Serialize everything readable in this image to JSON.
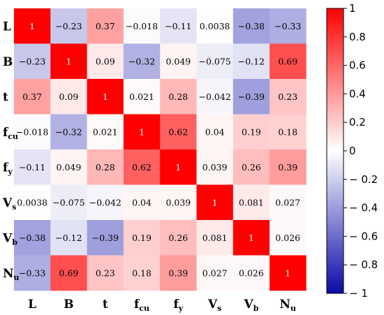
{
  "chart_data": {
    "type": "heatmap",
    "variables": [
      {
        "main": "L",
        "sub": ""
      },
      {
        "main": "B",
        "sub": ""
      },
      {
        "main": "t",
        "sub": ""
      },
      {
        "main": "f",
        "sub": "cu"
      },
      {
        "main": "f",
        "sub": "y"
      },
      {
        "main": "V",
        "sub": "s"
      },
      {
        "main": "V",
        "sub": "b"
      },
      {
        "main": "N",
        "sub": "u"
      }
    ],
    "matrix": [
      [
        "1",
        "-0.23",
        "0.37",
        "-0.018",
        "-0.11",
        "0.0038",
        "-0.38",
        "-0.33"
      ],
      [
        "-0.23",
        "1",
        "0.09",
        "-0.32",
        "0.049",
        "-0.075",
        "-0.12",
        "0.69"
      ],
      [
        "0.37",
        "0.09",
        "1",
        "0.021",
        "0.28",
        "-0.042",
        "-0.39",
        "0.23"
      ],
      [
        "-0.018",
        "-0.32",
        "0.021",
        "1",
        "0.62",
        "0.04",
        "0.19",
        "0.18"
      ],
      [
        "-0.11",
        "0.049",
        "0.28",
        "0.62",
        "1",
        "0.039",
        "0.26",
        "0.39"
      ],
      [
        "0.0038",
        "-0.075",
        "-0.042",
        "0.04",
        "0.039",
        "1",
        "0.081",
        "0.027"
      ],
      [
        "-0.38",
        "-0.12",
        "-0.39",
        "0.19",
        "0.26",
        "0.081",
        "1",
        "0.026"
      ],
      [
        "-0.33",
        "0.69",
        "0.23",
        "0.18",
        "0.39",
        "0.027",
        "0.026",
        "1"
      ]
    ],
    "colorbar": {
      "range": [
        -1,
        1
      ],
      "ticks": [
        "1",
        "0.8",
        "0.6",
        "0.4",
        "0.2",
        "0",
        "-0.2",
        "-0.4",
        "-0.6",
        "-0.8",
        "-1"
      ],
      "colors": {
        "negative": "#0a0aa8",
        "zero": "#ffffff",
        "positive": "#ff0000"
      }
    },
    "title": "",
    "xlabel": "",
    "ylabel": ""
  }
}
